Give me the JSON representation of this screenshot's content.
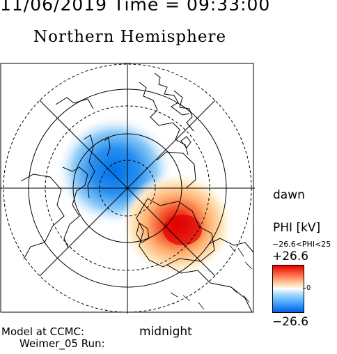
{
  "header": "11/06/2019 Time = 09:33:00",
  "title": "Northern Hemisphere",
  "labels": {
    "dawn": "dawn",
    "midnight": "midnight",
    "model_line1": "Model at CCMC:",
    "model_line2": "Weimer_05 Run:"
  },
  "colorbar": {
    "title": "PHI [kV]",
    "range_text": "−26.6<PHI<25",
    "max": "+26.6",
    "zero": "0",
    "min": "−26.6",
    "colors": {
      "positive": "#e00000",
      "zero": "#ffffff",
      "negative": "#0060e0"
    }
  }
}
